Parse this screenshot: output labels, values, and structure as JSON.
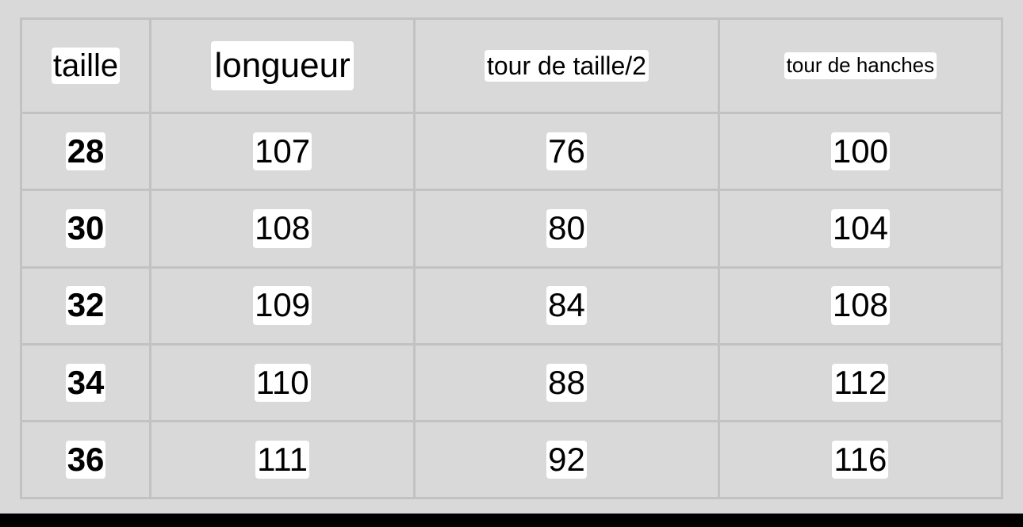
{
  "table": {
    "headers": [
      "taille",
      "longueur",
      "tour de taille/2",
      "tour de hanches"
    ],
    "rows": [
      [
        "28",
        "107",
        "76",
        "100"
      ],
      [
        "30",
        "108",
        "80",
        "104"
      ],
      [
        "32",
        "109",
        "84",
        "108"
      ],
      [
        "34",
        "110",
        "88",
        "112"
      ],
      [
        "36",
        "111",
        "92",
        "116"
      ]
    ]
  },
  "colors": {
    "background": "#d9d9d9",
    "grid": "#c2c2c2",
    "label_bg": "#ffffff"
  }
}
